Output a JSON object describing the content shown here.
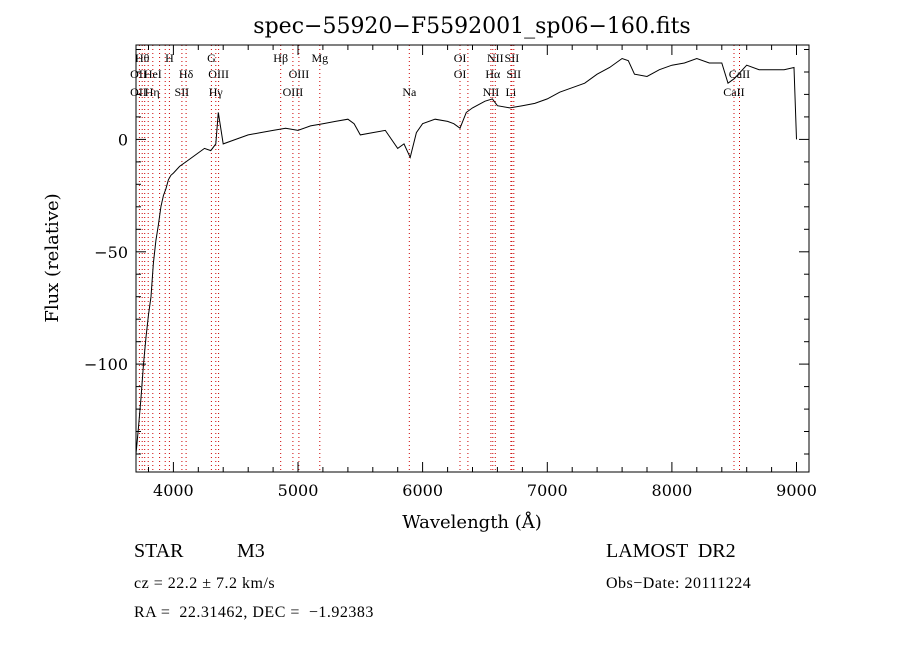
{
  "chart_data": {
    "type": "line",
    "title": "spec−55920−F5592001_sp06−160.fits",
    "xlabel": "Wavelength (Å)",
    "ylabel": "Flux (relative)",
    "xlim": [
      3700,
      9100
    ],
    "ylim": [
      -148,
      42
    ],
    "x_ticks": [
      4000,
      5000,
      6000,
      7000,
      8000,
      9000
    ],
    "y_ticks": [
      0,
      -50,
      -100
    ],
    "x_tick_labels": [
      "4000",
      "5000",
      "6000",
      "7000",
      "8000",
      "9000"
    ],
    "y_tick_labels": [
      "0",
      "−50",
      "−100"
    ],
    "series": [
      {
        "x": [
          3700,
          3720,
          3740,
          3760,
          3780,
          3800,
          3820,
          3840,
          3860,
          3880,
          3900,
          3920,
          3940,
          3960,
          3980,
          4000,
          4050,
          4100,
          4150,
          4200,
          4250,
          4300,
          4340,
          4360,
          4400,
          4500,
          4600,
          4700,
          4800,
          4900,
          5000,
          5100,
          5200,
          5300,
          5400,
          5450,
          5500,
          5600,
          5700,
          5800,
          5850,
          5900,
          5950,
          6000,
          6100,
          6200,
          6250,
          6300,
          6350,
          6400,
          6500,
          6560,
          6600,
          6700,
          6800,
          6900,
          7000,
          7100,
          7200,
          7300,
          7400,
          7500,
          7600,
          7650,
          7700,
          7800,
          7900,
          8000,
          8100,
          8200,
          8300,
          8400,
          8450,
          8500,
          8600,
          8700,
          8800,
          8900,
          8980,
          9000
        ],
        "y": [
          -140,
          -128,
          -115,
          -100,
          -88,
          -78,
          -70,
          -55,
          -45,
          -38,
          -30,
          -25,
          -22,
          -18,
          -16,
          -15,
          -12,
          -10,
          -8,
          -6,
          -4,
          -5,
          -2,
          12,
          -2,
          0,
          2,
          3,
          4,
          5,
          4,
          6,
          7,
          8,
          9,
          7,
          2,
          3,
          4,
          -4,
          -2,
          -8,
          3,
          7,
          9,
          8,
          7,
          5,
          12,
          14,
          17,
          18,
          15,
          14,
          15,
          16,
          18,
          21,
          23,
          25,
          29,
          32,
          36,
          35,
          29,
          28,
          31,
          33,
          34,
          36,
          34,
          34,
          25,
          27,
          33,
          31,
          31,
          31,
          32,
          0
        ]
      }
    ],
    "annotations": [
      {
        "x": 3750,
        "row": 0,
        "text": "Hθ"
      },
      {
        "x": 3720,
        "row": 1,
        "text": "OII"
      },
      {
        "x": 3720,
        "row": 2,
        "text": "OII"
      },
      {
        "x": 3835,
        "row": 1,
        "text": "HeI"
      },
      {
        "x": 3830,
        "row": 2,
        "text": "Hη"
      },
      {
        "x": 3968,
        "row": 0,
        "text": "H"
      },
      {
        "x": 4102,
        "row": 1,
        "text": "Hδ"
      },
      {
        "x": 4068,
        "row": 2,
        "text": "SII"
      },
      {
        "x": 4305,
        "row": 0,
        "text": "G"
      },
      {
        "x": 4363,
        "row": 1,
        "text": "OIII"
      },
      {
        "x": 4340,
        "row": 2,
        "text": "Hγ"
      },
      {
        "x": 4861,
        "row": 0,
        "text": "Hβ"
      },
      {
        "x": 5007,
        "row": 1,
        "text": "OIII"
      },
      {
        "x": 4959,
        "row": 2,
        "text": "OIII"
      },
      {
        "x": 5175,
        "row": 0,
        "text": "Mg"
      },
      {
        "x": 5893,
        "row": 2,
        "text": "Na"
      },
      {
        "x": 6300,
        "row": 0,
        "text": "OI"
      },
      {
        "x": 6300,
        "row": 1,
        "text": "OI"
      },
      {
        "x": 6583,
        "row": 0,
        "text": "NII"
      },
      {
        "x": 6716,
        "row": 0,
        "text": "SII"
      },
      {
        "x": 6563,
        "row": 1,
        "text": "Hα"
      },
      {
        "x": 6731,
        "row": 1,
        "text": "SII"
      },
      {
        "x": 6548,
        "row": 2,
        "text": "NII"
      },
      {
        "x": 6708,
        "row": 2,
        "text": "Li"
      },
      {
        "x": 8542,
        "row": 1,
        "text": "CaII"
      },
      {
        "x": 8498,
        "row": 2,
        "text": "CaII"
      }
    ],
    "line_markers": [
      3727,
      3750,
      3770,
      3798,
      3835,
      3889,
      3934,
      3968,
      4068,
      4102,
      4305,
      4340,
      4363,
      4861,
      4959,
      5007,
      5175,
      5893,
      6300,
      6363,
      6548,
      6563,
      6583,
      6708,
      6716,
      6731,
      8498,
      8542
    ]
  },
  "info": {
    "object_type": "STAR",
    "subclass": "M3",
    "survey": "LAMOST  DR2",
    "cz": "cz = 22.2 ± 7.2 km/s",
    "obs_date": "Obs−Date: 20111224",
    "coords": "RA =  22.31462, DEC =  −1.92383"
  }
}
